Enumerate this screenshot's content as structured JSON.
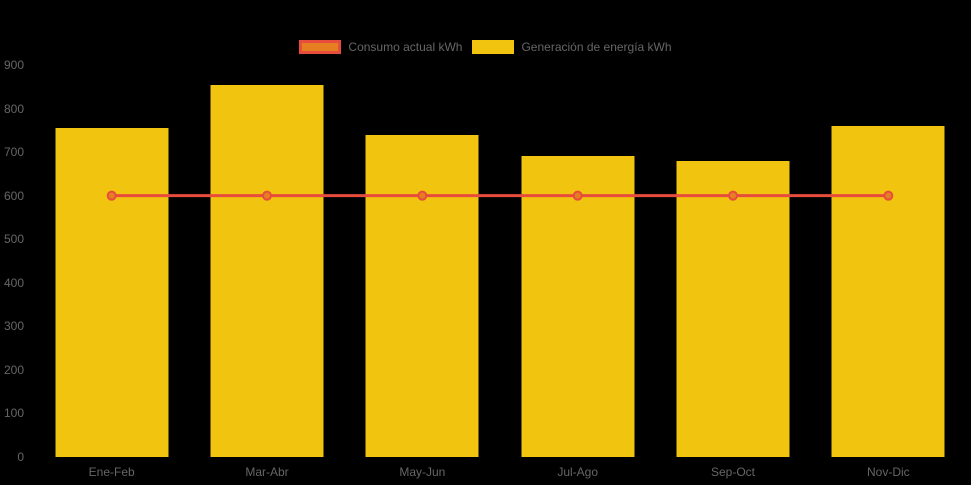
{
  "page": {
    "background": "#000000",
    "axis_text_color": "#666666"
  },
  "legend": {
    "position": "top",
    "items": [
      {
        "label": "Consumo actual kWh",
        "fill": "#e67e22",
        "border": "#e74c3c"
      },
      {
        "label": "Generación de energía kWh",
        "fill": "#f1c40f",
        "border": "#f1c40f"
      }
    ]
  },
  "chart_data": {
    "type": "bar",
    "title": "",
    "xlabel": "",
    "ylabel": "",
    "categories": [
      "Ene-Feb",
      "Mar-Abr",
      "May-Jun",
      "Jul-Ago",
      "Sep-Oct",
      "Nov-Dic"
    ],
    "series": [
      {
        "name": "Consumo actual kWh",
        "type": "line",
        "values": [
          600,
          600,
          600,
          600,
          600,
          600
        ],
        "line_color": "#e74c3c",
        "point_fill_color": "#e67e22",
        "point_border_color": "#e74c3c"
      },
      {
        "name": "Generación de energía kWh",
        "type": "bar",
        "values": [
          755,
          855,
          740,
          690,
          680,
          760
        ],
        "bar_color": "#f1c40f"
      }
    ],
    "ylim": [
      0,
      900
    ],
    "y_ticks": [
      0,
      100,
      200,
      300,
      400,
      500,
      600,
      700,
      800,
      900
    ],
    "grid": false,
    "legend_position": "top-center",
    "background": "#000000"
  }
}
